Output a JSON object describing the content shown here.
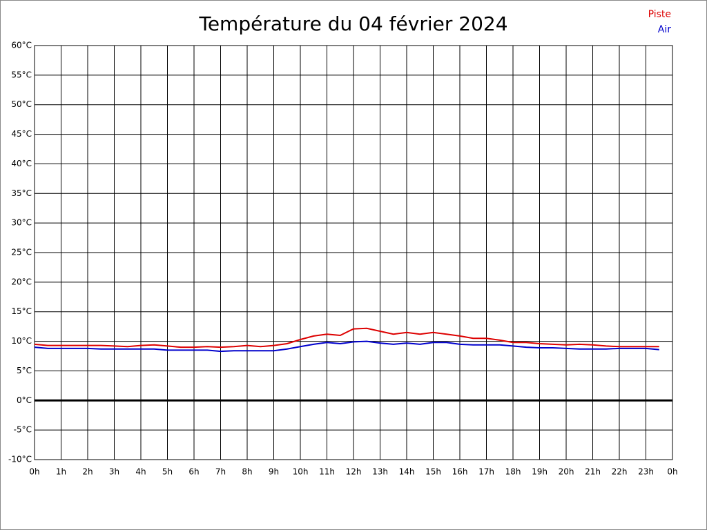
{
  "chart_data": {
    "type": "line",
    "title": "Température du 04 février 2024",
    "x": [
      0,
      0.5,
      1,
      1.5,
      2,
      2.5,
      3,
      3.5,
      4,
      4.5,
      5,
      5.5,
      6,
      6.5,
      7,
      7.5,
      8,
      8.5,
      9,
      9.5,
      10,
      10.5,
      11,
      11.5,
      12,
      12.5,
      13,
      13.5,
      14,
      14.5,
      15,
      15.5,
      16,
      16.5,
      17,
      17.5,
      18,
      18.5,
      19,
      19.5,
      20,
      20.5,
      21,
      21.5,
      22,
      22.5,
      23,
      23.5
    ],
    "series": [
      {
        "name": "Piste",
        "color": "#dd0000",
        "values": [
          9.5,
          9.3,
          9.3,
          9.3,
          9.3,
          9.3,
          9.2,
          9.1,
          9.3,
          9.4,
          9.2,
          9.0,
          9.0,
          9.1,
          9.0,
          9.1,
          9.3,
          9.1,
          9.3,
          9.6,
          10.3,
          10.9,
          11.2,
          11.0,
          12.1,
          12.2,
          11.7,
          11.2,
          11.5,
          11.2,
          11.5,
          11.2,
          10.9,
          10.5,
          10.5,
          10.2,
          9.8,
          9.8,
          9.6,
          9.5,
          9.4,
          9.5,
          9.4,
          9.2,
          9.1,
          9.1,
          9.1,
          9.1
        ]
      },
      {
        "name": "Air",
        "color": "#0000cc",
        "values": [
          9.0,
          8.8,
          8.8,
          8.8,
          8.8,
          8.7,
          8.7,
          8.7,
          8.7,
          8.7,
          8.5,
          8.5,
          8.5,
          8.5,
          8.3,
          8.4,
          8.4,
          8.4,
          8.4,
          8.7,
          9.1,
          9.5,
          9.8,
          9.6,
          9.9,
          10.0,
          9.7,
          9.5,
          9.7,
          9.5,
          9.8,
          9.8,
          9.5,
          9.4,
          9.4,
          9.4,
          9.2,
          9.0,
          8.9,
          8.9,
          8.8,
          8.7,
          8.7,
          8.7,
          8.8,
          8.8,
          8.8,
          8.6
        ]
      }
    ],
    "xlim": [
      0,
      24
    ],
    "xticks": [
      {
        "value": 0,
        "label": "0h"
      },
      {
        "value": 1,
        "label": "1h"
      },
      {
        "value": 2,
        "label": "2h"
      },
      {
        "value": 3,
        "label": "3h"
      },
      {
        "value": 4,
        "label": "4h"
      },
      {
        "value": 5,
        "label": "5h"
      },
      {
        "value": 6,
        "label": "6h"
      },
      {
        "value": 7,
        "label": "7h"
      },
      {
        "value": 8,
        "label": "8h"
      },
      {
        "value": 9,
        "label": "9h"
      },
      {
        "value": 10,
        "label": "10h"
      },
      {
        "value": 11,
        "label": "11h"
      },
      {
        "value": 12,
        "label": "12h"
      },
      {
        "value": 13,
        "label": "13h"
      },
      {
        "value": 14,
        "label": "14h"
      },
      {
        "value": 15,
        "label": "15h"
      },
      {
        "value": 16,
        "label": "16h"
      },
      {
        "value": 17,
        "label": "17h"
      },
      {
        "value": 18,
        "label": "18h"
      },
      {
        "value": 19,
        "label": "19h"
      },
      {
        "value": 20,
        "label": "20h"
      },
      {
        "value": 21,
        "label": "21h"
      },
      {
        "value": 22,
        "label": "22h"
      },
      {
        "value": 23,
        "label": "23h"
      },
      {
        "value": 24,
        "label": "0h"
      }
    ],
    "ylim": [
      -10,
      60
    ],
    "yticks": [
      {
        "value": -10,
        "label": "-10°C"
      },
      {
        "value": -5,
        "label": "-5°C"
      },
      {
        "value": 0,
        "label": "0°C"
      },
      {
        "value": 5,
        "label": "5°C"
      },
      {
        "value": 10,
        "label": "10°C"
      },
      {
        "value": 15,
        "label": "15°C"
      },
      {
        "value": 20,
        "label": "20°C"
      },
      {
        "value": 25,
        "label": "25°C"
      },
      {
        "value": 30,
        "label": "30°C"
      },
      {
        "value": 35,
        "label": "35°C"
      },
      {
        "value": 40,
        "label": "40°C"
      },
      {
        "value": 45,
        "label": "45°C"
      },
      {
        "value": 50,
        "label": "50°C"
      },
      {
        "value": 55,
        "label": "55°C"
      },
      {
        "value": 60,
        "label": "60°C"
      }
    ],
    "grid": true
  }
}
